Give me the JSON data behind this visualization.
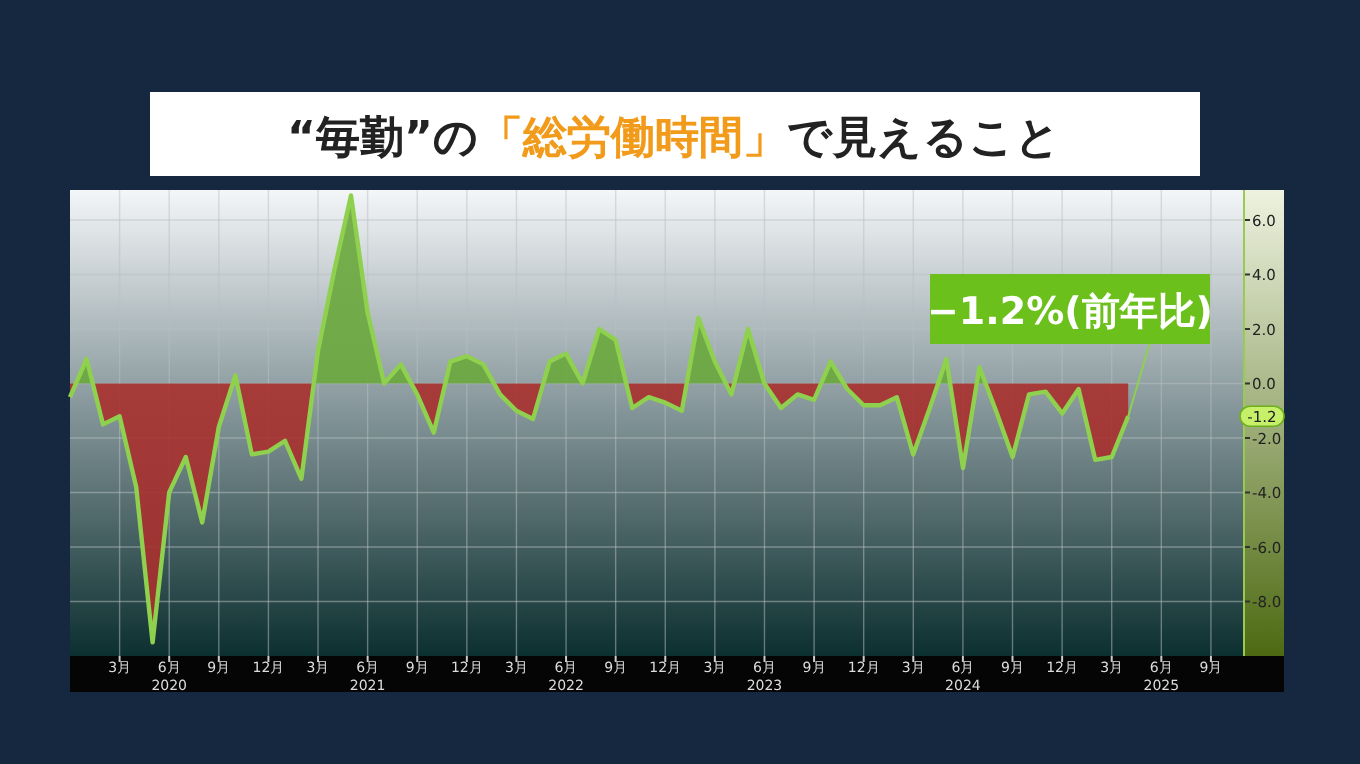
{
  "chart_data": {
    "type": "area",
    "title": "“毎勤”の「総労働時間」で見えること",
    "x": [
      "2019-12",
      "2020-01",
      "2020-02",
      "2020-03",
      "2020-04",
      "2020-05",
      "2020-06",
      "2020-07",
      "2020-08",
      "2020-09",
      "2020-10",
      "2020-11",
      "2020-12",
      "2021-01",
      "2021-02",
      "2021-03",
      "2021-04",
      "2021-05",
      "2021-06",
      "2021-07",
      "2021-08",
      "2021-09",
      "2021-10",
      "2021-11",
      "2021-12",
      "2022-01",
      "2022-02",
      "2022-03",
      "2022-04",
      "2022-05",
      "2022-06",
      "2022-07",
      "2022-08",
      "2022-09",
      "2022-10",
      "2022-11",
      "2022-12",
      "2023-01",
      "2023-02",
      "2023-03",
      "2023-04",
      "2023-05",
      "2023-06",
      "2023-07",
      "2023-08",
      "2023-09",
      "2023-10",
      "2023-11",
      "2023-12",
      "2024-01",
      "2024-02",
      "2024-03",
      "2024-04",
      "2024-05",
      "2024-06",
      "2024-07",
      "2024-08",
      "2024-09",
      "2024-10",
      "2024-11",
      "2024-12",
      "2025-01",
      "2025-02",
      "2025-03",
      "2025-04"
    ],
    "series": [
      {
        "color": "#8fd14f",
        "colors": [
          "#a8302e",
          "#6aa83c",
          "#a8302e",
          "#a8302e",
          "#a8302e",
          "#a8302e",
          "#a8302e",
          "#a8302e",
          "#a8302e",
          "#a8302e",
          "#6aa83c",
          "#a8302e",
          "#a8302e",
          "#a8302e",
          "#a8302e",
          "#6aa83c",
          "#6aa83c",
          "#6aa83c",
          "#6aa83c",
          "#6aa83c",
          "#6aa83c",
          "#a8302e",
          "#a8302e",
          "#6aa83c",
          "#6aa83c",
          "#6aa83c",
          "#a8302e",
          "#a8302e",
          "#a8302e",
          "#6aa83c",
          "#6aa83c",
          "#6aa83c",
          "#6aa83c",
          "#6aa83c",
          "#a8302e",
          "#a8302e",
          "#a8302e",
          "#a8302e",
          "#6aa83c",
          "#6aa83c",
          "#a8302e",
          "#6aa83c",
          "#6aa83c",
          "#a8302e",
          "#a8302e",
          "#a8302e",
          "#6aa83c",
          "#a8302e",
          "#a8302e",
          "#a8302e",
          "#a8302e",
          "#a8302e",
          "#a8302e",
          "#6aa83c",
          "#a8302e",
          "#6aa83c",
          "#a8302e",
          "#a8302e",
          "#a8302e",
          "#a8302e",
          "#a8302e",
          "#a8302e",
          "#a8302e",
          "#a8302e",
          "#a8302e"
        ],
        "values": [
          -0.5,
          0.9,
          -1.5,
          -1.2,
          -3.8,
          -9.5,
          -4.0,
          -2.7,
          -5.1,
          -1.6,
          0.3,
          -2.6,
          -2.5,
          -2.1,
          -3.5,
          1.2,
          4.2,
          6.9,
          2.6,
          0.0,
          0.7,
          -0.4,
          -1.8,
          0.8,
          1.0,
          0.7,
          -0.4,
          -1.0,
          -1.3,
          0.8,
          1.1,
          0.0,
          2.0,
          1.6,
          -0.9,
          -0.5,
          -0.7,
          -1.0,
          2.4,
          0.8,
          -0.4,
          2.0,
          0.0,
          -0.9,
          -0.4,
          -0.6,
          0.8,
          -0.2,
          -0.8,
          -0.8,
          -0.5,
          -2.6,
          -0.9,
          0.9,
          -3.1,
          0.6,
          -1.0,
          -2.7,
          -0.4,
          -0.3,
          -1.1,
          -0.2,
          -2.8,
          -2.7,
          -1.2
        ]
      }
    ],
    "xlim": [
      "2019-12",
      "2025-11"
    ],
    "xticks": [
      {
        "value": "2020-03",
        "label": "3月"
      },
      {
        "value": "2020-06",
        "label": "6月\n2020"
      },
      {
        "value": "2020-09",
        "label": "9月"
      },
      {
        "value": "2020-12",
        "label": "12月"
      },
      {
        "value": "2021-03",
        "label": "3月"
      },
      {
        "value": "2021-06",
        "label": "6月\n2021"
      },
      {
        "value": "2021-09",
        "label": "9月"
      },
      {
        "value": "2021-12",
        "label": "12月"
      },
      {
        "value": "2022-03",
        "label": "3月"
      },
      {
        "value": "2022-06",
        "label": "6月\n2022"
      },
      {
        "value": "2022-09",
        "label": "9月"
      },
      {
        "value": "2022-12",
        "label": "12月"
      },
      {
        "value": "2023-03",
        "label": "3月"
      },
      {
        "value": "2023-06",
        "label": "6月\n2023"
      },
      {
        "value": "2023-09",
        "label": "9月"
      },
      {
        "value": "2023-12",
        "label": "12月"
      },
      {
        "value": "2024-03",
        "label": "3月"
      },
      {
        "value": "2024-06",
        "label": "6月\n2024"
      },
      {
        "value": "2024-09",
        "label": "9月"
      },
      {
        "value": "2024-12",
        "label": "12月"
      },
      {
        "value": "2025-03",
        "label": "3月"
      },
      {
        "value": "2025-06",
        "label": "6月\n2025"
      },
      {
        "value": "2025-09",
        "label": "9月"
      }
    ],
    "ylim": [
      -10,
      7.1
    ],
    "yticks": [
      {
        "value": 6,
        "label": "6.0"
      },
      {
        "value": 4,
        "label": "4.0"
      },
      {
        "value": 2,
        "label": "2.0"
      },
      {
        "value": 0,
        "label": "0.0"
      },
      {
        "value": -2,
        "label": "-2.0"
      },
      {
        "value": -4,
        "label": "-4.0"
      },
      {
        "value": -6,
        "label": "-6.0"
      },
      {
        "value": -8,
        "label": "-8.0"
      }
    ],
    "grid": true,
    "annotations": [
      {
        "text": "−1.2%(前年比)",
        "x": "2025-04",
        "y": -1.2
      },
      {
        "text": "-1.2",
        "y": -1.2
      }
    ]
  }
}
